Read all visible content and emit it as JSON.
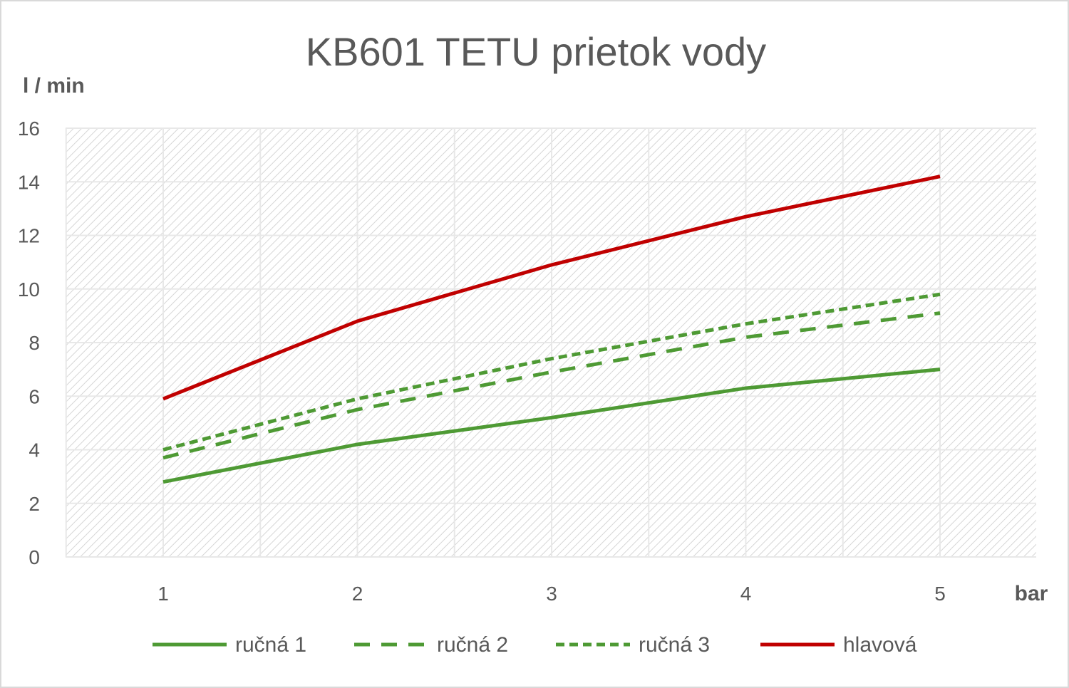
{
  "chart_data": {
    "type": "line",
    "title": "KB601 TETU prietok vody",
    "ylabel": "l / min",
    "xlabel": "bar",
    "categories": [
      "1",
      "2",
      "3",
      "4",
      "5"
    ],
    "y_ticks": [
      "0",
      "2",
      "4",
      "6",
      "8",
      "10",
      "12",
      "14",
      "16"
    ],
    "ylim": [
      0,
      16
    ],
    "grid": true,
    "legend_position": "bottom",
    "series": [
      {
        "name": "ručná 1",
        "values": [
          2.8,
          4.2,
          5.2,
          6.3,
          7.0
        ],
        "color": "#4e9a34",
        "style": "solid"
      },
      {
        "name": "ručná 2",
        "values": [
          3.7,
          5.5,
          6.9,
          8.2,
          9.1
        ],
        "color": "#4e9a34",
        "style": "dashed"
      },
      {
        "name": "ručná 3",
        "values": [
          4.0,
          5.9,
          7.4,
          8.7,
          9.8
        ],
        "color": "#4e9a34",
        "style": "dotted"
      },
      {
        "name": "hlavová",
        "values": [
          5.9,
          8.8,
          10.9,
          12.7,
          14.2
        ],
        "color": "#c00000",
        "style": "solid"
      }
    ]
  }
}
